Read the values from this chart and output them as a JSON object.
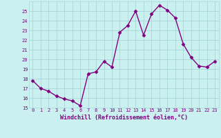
{
  "x": [
    0,
    1,
    2,
    3,
    4,
    5,
    6,
    7,
    8,
    9,
    10,
    11,
    12,
    13,
    14,
    15,
    16,
    17,
    18,
    19,
    20,
    21,
    22,
    23
  ],
  "y": [
    17.8,
    17.0,
    16.7,
    16.2,
    15.9,
    15.7,
    15.2,
    18.5,
    18.7,
    19.8,
    19.2,
    22.8,
    23.5,
    25.0,
    22.5,
    24.7,
    25.6,
    25.1,
    24.3,
    21.6,
    20.2,
    19.3,
    19.2,
    19.8
  ],
  "line_color": "#800080",
  "marker": "D",
  "marker_size": 2.5,
  "bg_color": "#caf0f0",
  "grid_color": "#a8d8d8",
  "xlabel": "Windchill (Refroidissement éolien,°C)",
  "ylim": [
    15,
    26
  ],
  "xlim_min": -0.5,
  "xlim_max": 23.5,
  "yticks": [
    15,
    16,
    17,
    18,
    19,
    20,
    21,
    22,
    23,
    24,
    25
  ],
  "xticks": [
    0,
    1,
    2,
    3,
    4,
    5,
    6,
    7,
    8,
    9,
    10,
    11,
    12,
    13,
    14,
    15,
    16,
    17,
    18,
    19,
    20,
    21,
    22,
    23
  ],
  "tick_color": "#800080",
  "label_color": "#800080",
  "line_width": 1.0,
  "tick_fontsize": 5.0,
  "xlabel_fontsize": 6.0
}
